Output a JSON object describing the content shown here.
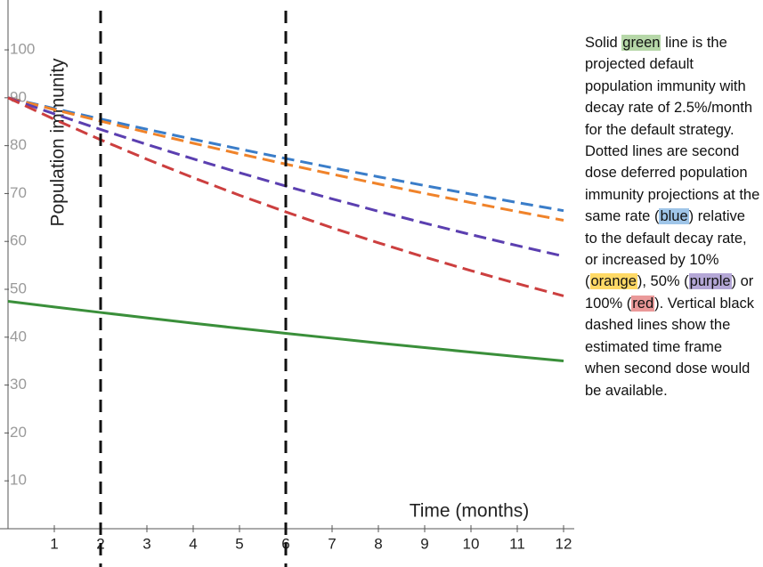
{
  "chart_data": {
    "type": "line",
    "y_label": "Population immunity",
    "x_label": "Time (months)",
    "x": [
      0,
      1,
      2,
      3,
      4,
      5,
      6,
      7,
      8,
      9,
      10,
      11,
      12
    ],
    "series": [
      {
        "color": "#3a7dc9",
        "dashed": true,
        "values": [
          90,
          87.75,
          85.56,
          83.42,
          81.33,
          79.3,
          77.32,
          75.38,
          73.5,
          71.66,
          69.87,
          68.12,
          66.42
        ]
      },
      {
        "color": "#f0832a",
        "dashed": true,
        "values": [
          90,
          87.53,
          85.12,
          82.78,
          80.51,
          78.29,
          76.14,
          74.05,
          72.01,
          70.03,
          68.11,
          66.23,
          64.41
        ]
      },
      {
        "color": "#5b3fb0",
        "dashed": true,
        "values": [
          90,
          86.63,
          83.38,
          80.25,
          77.24,
          74.35,
          71.56,
          68.88,
          66.3,
          63.81,
          61.42,
          59.12,
          56.9
        ]
      },
      {
        "color": "#cc3f3f",
        "dashed": true,
        "values": [
          90,
          85.5,
          81.23,
          77.16,
          73.31,
          69.64,
          66.16,
          62.85,
          59.71,
          56.72,
          53.89,
          51.19,
          48.63
        ]
      },
      {
        "color": "#3a8f3a",
        "dashed": false,
        "values": [
          47.5,
          46.31,
          45.16,
          44.03,
          42.92,
          41.85,
          40.81,
          39.79,
          38.79,
          37.82,
          36.88,
          35.95,
          35.05
        ]
      }
    ],
    "vlines": [
      2,
      6
    ],
    "xlim": [
      0,
      12
    ],
    "ylim": [
      0,
      108
    ],
    "xticks": [
      1,
      2,
      3,
      4,
      5,
      6,
      7,
      8,
      9,
      10,
      11,
      12
    ],
    "yticks": [
      10,
      20,
      30,
      40,
      50,
      60,
      70,
      80,
      90,
      100
    ]
  },
  "note": [
    {
      "text": "Solid "
    },
    {
      "text": "green",
      "highlight": "#b6d7a8"
    },
    {
      "text": " line is the projected default population immunity with decay rate of 2.5%/month for the default strategy. Dotted lines are second dose deferred population immunity projections at the same rate ("
    },
    {
      "text": "blue",
      "highlight": "#9fc5e8"
    },
    {
      "text": ") relative to the default decay rate, or increased by 10% ("
    },
    {
      "text": "orange",
      "highlight": "#ffd966"
    },
    {
      "text": "), 50% ("
    },
    {
      "text": "purple",
      "highlight": "#b4a7d6"
    },
    {
      "text": ") or 100% ("
    },
    {
      "text": "red",
      "highlight": "#ea9999"
    },
    {
      "text": "). Vertical black dashed lines show the estimated time frame when second dose would be available."
    }
  ]
}
